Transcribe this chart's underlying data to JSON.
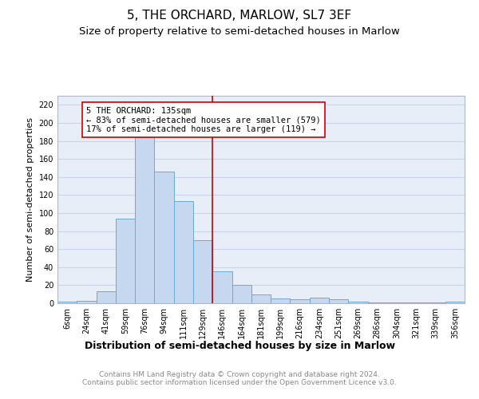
{
  "title": "5, THE ORCHARD, MARLOW, SL7 3EF",
  "subtitle": "Size of property relative to semi-detached houses in Marlow",
  "xlabel": "Distribution of semi-detached houses by size in Marlow",
  "ylabel": "Number of semi-detached properties",
  "categories": [
    "6sqm",
    "24sqm",
    "41sqm",
    "59sqm",
    "76sqm",
    "94sqm",
    "111sqm",
    "129sqm",
    "146sqm",
    "164sqm",
    "181sqm",
    "199sqm",
    "216sqm",
    "234sqm",
    "251sqm",
    "269sqm",
    "286sqm",
    "304sqm",
    "321sqm",
    "339sqm",
    "356sqm"
  ],
  "values": [
    2,
    3,
    13,
    94,
    184,
    146,
    113,
    70,
    35,
    20,
    10,
    5,
    4,
    6,
    4,
    2,
    1,
    1,
    1,
    1,
    2
  ],
  "bar_color": "#c5d8f0",
  "bar_edge_color": "#6aaad4",
  "bar_width": 1.0,
  "ylim": [
    0,
    230
  ],
  "yticks": [
    0,
    20,
    40,
    60,
    80,
    100,
    120,
    140,
    160,
    180,
    200,
    220
  ],
  "vline_color": "#cc0000",
  "annotation_text": "5 THE ORCHARD: 135sqm\n← 83% of semi-detached houses are smaller (579)\n17% of semi-detached houses are larger (119) →",
  "annotation_box_color": "#ffffff",
  "annotation_box_edge": "#cc0000",
  "grid_color": "#c8d4e8",
  "bg_color": "#e8eef8",
  "footer_text": "Contains HM Land Registry data © Crown copyright and database right 2024.\nContains public sector information licensed under the Open Government Licence v3.0.",
  "title_fontsize": 11,
  "subtitle_fontsize": 9.5,
  "footer_fontsize": 6.5,
  "ylabel_fontsize": 8,
  "xlabel_fontsize": 9,
  "tick_fontsize": 7,
  "annot_fontsize": 7.5
}
